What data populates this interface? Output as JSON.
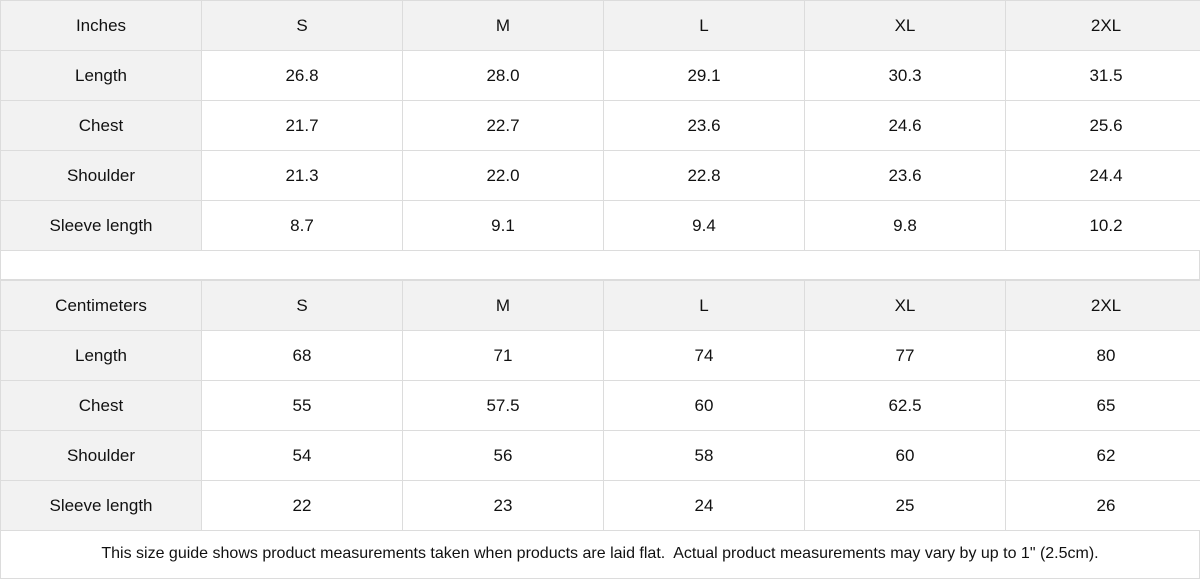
{
  "inches": {
    "header": [
      "Inches",
      "S",
      "M",
      "L",
      "XL",
      "2XL"
    ],
    "rows": [
      [
        "Length",
        "26.8",
        "28.0",
        "29.1",
        "30.3",
        "31.5"
      ],
      [
        "Chest",
        "21.7",
        "22.7",
        "23.6",
        "24.6",
        "25.6"
      ],
      [
        "Shoulder",
        "21.3",
        "22.0",
        "22.8",
        "23.6",
        "24.4"
      ],
      [
        "Sleeve length",
        "8.7",
        "9.1",
        "9.4",
        "9.8",
        "10.2"
      ]
    ]
  },
  "centimeters": {
    "header": [
      "Centimeters",
      "S",
      "M",
      "L",
      "XL",
      "2XL"
    ],
    "rows": [
      [
        "Length",
        "68",
        "71",
        "74",
        "77",
        "80"
      ],
      [
        "Chest",
        "55",
        "57.5",
        "60",
        "62.5",
        "65"
      ],
      [
        "Shoulder",
        "54",
        "56",
        "58",
        "60",
        "62"
      ],
      [
        "Sleeve length",
        "22",
        "23",
        "24",
        "25",
        "26"
      ]
    ]
  },
  "footer": "This size guide shows product measurements taken when products are laid flat.  Actual product measurements may vary by up to 1\" (2.5cm)."
}
